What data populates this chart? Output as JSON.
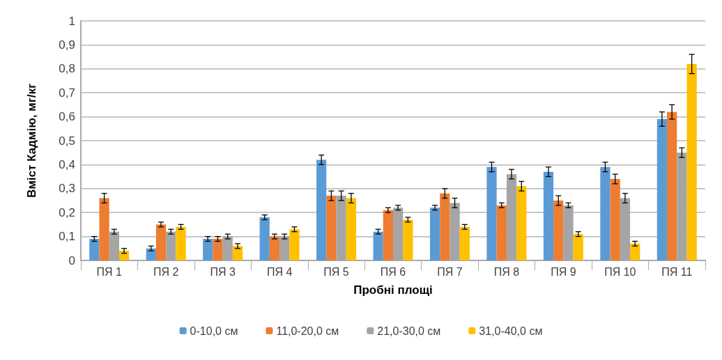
{
  "chart_data": {
    "type": "bar",
    "xlabel": "Пробні площі",
    "ylabel": "Вміст Кадмію, мг/кг",
    "categories": [
      "ПЯ 1",
      "ПЯ 2",
      "ПЯ 3",
      "ПЯ 4",
      "ПЯ 5",
      "ПЯ 6",
      "ПЯ 7",
      "ПЯ 8",
      "ПЯ 9",
      "ПЯ 10",
      "ПЯ 11"
    ],
    "series": [
      {
        "name": "0-10,0 см",
        "color": "#5b9bd5",
        "values": [
          0.09,
          0.05,
          0.09,
          0.18,
          0.42,
          0.12,
          0.22,
          0.39,
          0.37,
          0.39,
          0.59
        ],
        "errors": [
          0.01,
          0.01,
          0.01,
          0.01,
          0.02,
          0.01,
          0.01,
          0.02,
          0.02,
          0.02,
          0.03
        ]
      },
      {
        "name": "11,0-20,0 см",
        "color": "#ed7d31",
        "values": [
          0.26,
          0.15,
          0.09,
          0.1,
          0.27,
          0.21,
          0.28,
          0.23,
          0.25,
          0.34,
          0.62
        ],
        "errors": [
          0.02,
          0.01,
          0.01,
          0.01,
          0.02,
          0.01,
          0.02,
          0.01,
          0.02,
          0.02,
          0.03
        ]
      },
      {
        "name": "21,0-30,0 см",
        "color": "#a5a5a5",
        "values": [
          0.12,
          0.12,
          0.1,
          0.1,
          0.27,
          0.22,
          0.24,
          0.36,
          0.23,
          0.26,
          0.45
        ],
        "errors": [
          0.01,
          0.01,
          0.01,
          0.01,
          0.02,
          0.01,
          0.02,
          0.02,
          0.01,
          0.02,
          0.02
        ]
      },
      {
        "name": "31,0-40,0 см",
        "color": "#ffc000",
        "values": [
          0.04,
          0.14,
          0.06,
          0.13,
          0.26,
          0.17,
          0.14,
          0.31,
          0.11,
          0.07,
          0.82
        ],
        "errors": [
          0.01,
          0.01,
          0.01,
          0.01,
          0.02,
          0.01,
          0.01,
          0.02,
          0.01,
          0.01,
          0.04
        ]
      }
    ],
    "ylim": [
      0,
      1
    ],
    "yticks": [
      0,
      {
        "value": 0.1,
        "label": "0,1"
      },
      {
        "value": 0.2,
        "label": "0,2"
      },
      {
        "value": 0.3,
        "label": "0,3"
      },
      {
        "value": 0.4,
        "label": "0,4"
      },
      {
        "value": 0.5,
        "label": "0,5"
      },
      {
        "value": 0.6,
        "label": "0,6"
      },
      {
        "value": 0.7,
        "label": "0,7"
      },
      {
        "value": 0.8,
        "label": "0,8"
      },
      {
        "value": 0.9,
        "label": "0,9"
      },
      1
    ],
    "grid": "y",
    "legend": "bottom"
  }
}
